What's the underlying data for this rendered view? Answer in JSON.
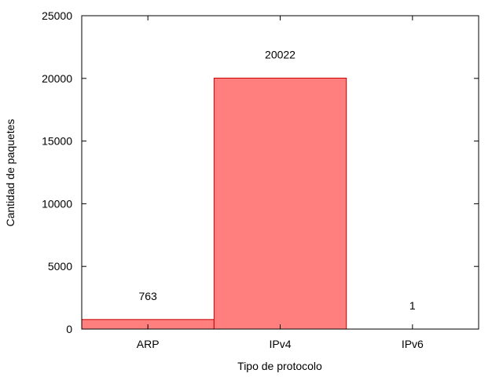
{
  "chart_data": {
    "type": "bar",
    "categories": [
      "ARP",
      "IPv4",
      "IPv6"
    ],
    "values": [
      763,
      20022,
      1
    ],
    "data_labels": [
      "763",
      "20022",
      "1"
    ],
    "xlabel": "Tipo de protocolo",
    "ylabel": "Cantidad de paquetes",
    "ylim": [
      0,
      25000
    ],
    "yticks": [
      0,
      5000,
      10000,
      15000,
      20000,
      25000
    ],
    "grid": false,
    "bar_color": "#ff7f7f",
    "bar_edge_color": "#cc0000"
  }
}
